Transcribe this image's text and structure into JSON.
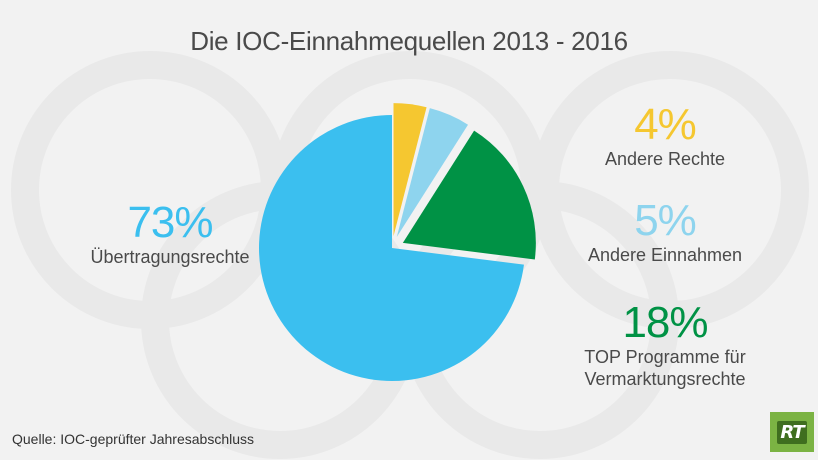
{
  "title": "Die IOC-Einnahmequellen 2013 - 2016",
  "source": "Quelle: IOC-geprüfter Jahresabschluss",
  "logo_text": "RT",
  "chart_data": {
    "type": "pie",
    "title": "Die IOC-Einnahmequellen 2013 - 2016",
    "slices": [
      {
        "label": "Andere Rechte",
        "value": 4,
        "display": "4%",
        "color": "#f5c730"
      },
      {
        "label": "Andere Einnahmen",
        "value": 5,
        "display": "5%",
        "color": "#8ed4ee"
      },
      {
        "label": "TOP Programme für Vermarktungsrechte",
        "value": 18,
        "display": "18%",
        "color": "#009245"
      },
      {
        "label": "Übertragungsrechte",
        "value": 73,
        "display": "73%",
        "color": "#3bbfef"
      }
    ]
  },
  "labels": {
    "uebertragung": {
      "pct": "73%",
      "name": "Übertragungsrechte",
      "color": "#3bbfef"
    },
    "andere_rechte": {
      "pct": "4%",
      "name": "Andere Rechte",
      "color": "#f5c730"
    },
    "andere_einnahmen": {
      "pct": "5%",
      "name": "Andere Einnahmen",
      "color": "#8ed4ee"
    },
    "top": {
      "pct": "18%",
      "name_line1": "TOP Programme für",
      "name_line2": "Vermarktungsrechte",
      "color": "#009245"
    }
  }
}
